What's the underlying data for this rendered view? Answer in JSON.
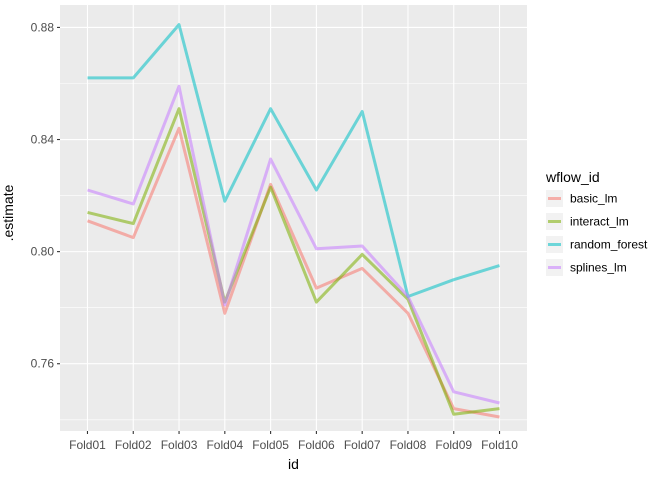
{
  "chart_data": {
    "type": "line",
    "xlabel": "id",
    "ylabel": ".estimate",
    "categories": [
      "Fold01",
      "Fold02",
      "Fold03",
      "Fold04",
      "Fold05",
      "Fold06",
      "Fold07",
      "Fold08",
      "Fold09",
      "Fold10"
    ],
    "ylim": [
      0.736,
      0.888
    ],
    "y_ticks": [
      0.76,
      0.8,
      0.84,
      0.88
    ],
    "y_tick_labels": [
      "0.76",
      "0.80",
      "0.84",
      "0.88"
    ],
    "grid": true,
    "legend": {
      "title": "wflow_id",
      "position": "right"
    },
    "series": [
      {
        "name": "basic_lm",
        "color": "#F8766D",
        "values": [
          0.811,
          0.805,
          0.844,
          0.778,
          0.824,
          0.787,
          0.794,
          0.778,
          0.744,
          0.741
        ]
      },
      {
        "name": "interact_lm",
        "color": "#7CAE00",
        "values": [
          0.814,
          0.81,
          0.851,
          0.782,
          0.823,
          0.782,
          0.799,
          0.783,
          0.742,
          0.744
        ]
      },
      {
        "name": "random_forest",
        "color": "#00BFC4",
        "values": [
          0.862,
          0.862,
          0.881,
          0.818,
          0.851,
          0.822,
          0.85,
          0.784,
          0.79,
          0.795
        ]
      },
      {
        "name": "splines_lm",
        "color": "#C77CFF",
        "values": [
          0.822,
          0.817,
          0.859,
          0.781,
          0.833,
          0.801,
          0.802,
          0.784,
          0.75,
          0.746
        ]
      }
    ]
  }
}
